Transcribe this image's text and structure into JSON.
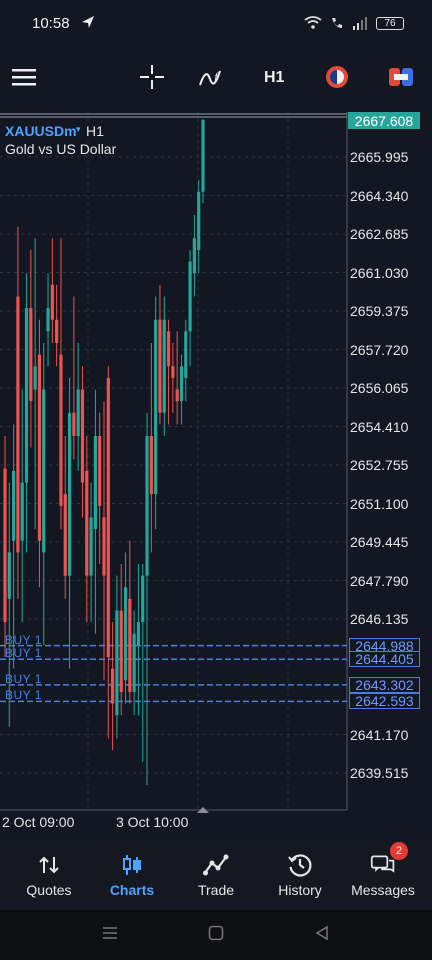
{
  "status": {
    "time": "10:58",
    "battery": "76"
  },
  "toolbar": {
    "timeframe": "H1"
  },
  "chart": {
    "symbol": "XAUUSDm",
    "symbol_marker": "▾",
    "timeframe": "H1",
    "description": "Gold vs US Dollar",
    "current_price": "2667.608",
    "price_labels": [
      "2665.995",
      "2664.340",
      "2662.685",
      "2661.030",
      "2659.375",
      "2657.720",
      "2656.065",
      "2654.410",
      "2652.755",
      "2651.100",
      "2649.445",
      "2647.790",
      "2646.135",
      "2641.170",
      "2639.515"
    ],
    "orders": [
      {
        "label": "BUY 1",
        "price": "2644.988"
      },
      {
        "label": "BUY 1",
        "price": "2644.405"
      },
      {
        "label": "BUY 1",
        "price": "2643.302"
      },
      {
        "label": "BUY 1",
        "price": "2642.593"
      }
    ],
    "time_labels": [
      "2 Oct 09:00",
      "3 Oct 10:00"
    ]
  },
  "chart_data": {
    "type": "candlestick",
    "symbol": "XAUUSDm",
    "y_range": [
      2638.5,
      2668.5
    ],
    "price_levels": [
      2665.995,
      2664.34,
      2662.685,
      2661.03,
      2659.375,
      2657.72,
      2656.065,
      2654.41,
      2652.755,
      2651.1,
      2649.445,
      2647.79,
      2646.135,
      2641.17,
      2639.515
    ],
    "current_price": 2667.608,
    "order_lines": [
      2644.988,
      2644.405,
      2643.302,
      2642.593
    ],
    "candles": [
      {
        "o": 2652.6,
        "h": 2654.0,
        "l": 2644.5,
        "c": 2646.0
      },
      {
        "o": 2647.0,
        "h": 2652.0,
        "l": 2641.5,
        "c": 2649.0
      },
      {
        "o": 2649.5,
        "h": 2654.5,
        "l": 2644.0,
        "c": 2652.5
      },
      {
        "o": 2660.0,
        "h": 2663.0,
        "l": 2647.0,
        "c": 2649.0
      },
      {
        "o": 2649.5,
        "h": 2656.0,
        "l": 2646.0,
        "c": 2652.0
      },
      {
        "o": 2652.0,
        "h": 2661.0,
        "l": 2649.0,
        "c": 2659.5
      },
      {
        "o": 2659.5,
        "h": 2662.0,
        "l": 2653.5,
        "c": 2655.5
      },
      {
        "o": 2656.0,
        "h": 2662.5,
        "l": 2650.0,
        "c": 2657.0
      },
      {
        "o": 2657.5,
        "h": 2659.0,
        "l": 2647.5,
        "c": 2649.5
      },
      {
        "o": 2649.0,
        "h": 2658.0,
        "l": 2645.0,
        "c": 2656.0
      },
      {
        "o": 2658.5,
        "h": 2661.0,
        "l": 2657.0,
        "c": 2659.5
      },
      {
        "o": 2660.5,
        "h": 2662.5,
        "l": 2658.0,
        "c": 2659.0
      },
      {
        "o": 2659.0,
        "h": 2660.5,
        "l": 2657.0,
        "c": 2658.0
      },
      {
        "o": 2657.5,
        "h": 2662.5,
        "l": 2650.0,
        "c": 2651.0
      },
      {
        "o": 2651.5,
        "h": 2654.0,
        "l": 2647.0,
        "c": 2648.0
      },
      {
        "o": 2648.0,
        "h": 2656.5,
        "l": 2644.0,
        "c": 2655.0
      },
      {
        "o": 2655.0,
        "h": 2660.0,
        "l": 2653.0,
        "c": 2654.0
      },
      {
        "o": 2654.0,
        "h": 2658.0,
        "l": 2652.5,
        "c": 2656.0
      },
      {
        "o": 2656.0,
        "h": 2657.0,
        "l": 2650.5,
        "c": 2652.0
      },
      {
        "o": 2652.5,
        "h": 2654.0,
        "l": 2646.0,
        "c": 2648.0
      },
      {
        "o": 2648.0,
        "h": 2652.0,
        "l": 2646.0,
        "c": 2650.5
      },
      {
        "o": 2650.0,
        "h": 2656.0,
        "l": 2645.5,
        "c": 2654.0
      },
      {
        "o": 2654.0,
        "h": 2655.0,
        "l": 2648.5,
        "c": 2651.0
      },
      {
        "o": 2650.5,
        "h": 2655.5,
        "l": 2643.5,
        "c": 2648.0
      },
      {
        "o": 2656.5,
        "h": 2657.0,
        "l": 2641.0,
        "c": 2644.5
      },
      {
        "o": 2644.0,
        "h": 2646.0,
        "l": 2640.5,
        "c": 2642.5
      },
      {
        "o": 2642.0,
        "h": 2648.0,
        "l": 2641.0,
        "c": 2646.5
      },
      {
        "o": 2646.5,
        "h": 2648.5,
        "l": 2642.0,
        "c": 2643.0
      },
      {
        "o": 2643.5,
        "h": 2649.0,
        "l": 2642.5,
        "c": 2647.5
      },
      {
        "o": 2647.0,
        "h": 2649.5,
        "l": 2642.5,
        "c": 2643.0
      },
      {
        "o": 2643.0,
        "h": 2646.5,
        "l": 2642.0,
        "c": 2645.5
      },
      {
        "o": 2645.0,
        "h": 2648.5,
        "l": 2642.0,
        "c": 2646.0
      },
      {
        "o": 2646.0,
        "h": 2648.5,
        "l": 2640.0,
        "c": 2648.0
      },
      {
        "o": 2648.0,
        "h": 2655.0,
        "l": 2639.0,
        "c": 2654.0
      },
      {
        "o": 2654.0,
        "h": 2658.0,
        "l": 2649.0,
        "c": 2651.5
      },
      {
        "o": 2651.5,
        "h": 2660.0,
        "l": 2650.0,
        "c": 2659.0
      },
      {
        "o": 2659.0,
        "h": 2660.5,
        "l": 2654.5,
        "c": 2655.0
      },
      {
        "o": 2655.0,
        "h": 2660.0,
        "l": 2654.0,
        "c": 2659.0
      },
      {
        "o": 2658.5,
        "h": 2659.0,
        "l": 2654.5,
        "c": 2657.0
      },
      {
        "o": 2657.0,
        "h": 2658.0,
        "l": 2655.0,
        "c": 2656.5
      },
      {
        "o": 2656.0,
        "h": 2658.5,
        "l": 2654.5,
        "c": 2655.5
      },
      {
        "o": 2655.5,
        "h": 2657.5,
        "l": 2654.5,
        "c": 2657.0
      },
      {
        "o": 2656.5,
        "h": 2659.0,
        "l": 2655.5,
        "c": 2658.5
      },
      {
        "o": 2658.5,
        "h": 2662.0,
        "l": 2657.0,
        "c": 2661.5
      },
      {
        "o": 2661.0,
        "h": 2663.5,
        "l": 2660.0,
        "c": 2662.5
      },
      {
        "o": 2662.0,
        "h": 2665.0,
        "l": 2661.0,
        "c": 2664.5
      },
      {
        "o": 2664.5,
        "h": 2667.6,
        "l": 2664.0,
        "c": 2667.6
      }
    ],
    "x_labels": [
      "2 Oct 09:00",
      "3 Oct 10:00"
    ]
  },
  "nav": {
    "items": [
      {
        "label": "Quotes"
      },
      {
        "label": "Charts"
      },
      {
        "label": "Trade"
      },
      {
        "label": "History"
      },
      {
        "label": "Messages"
      }
    ],
    "messages_badge": "2"
  }
}
